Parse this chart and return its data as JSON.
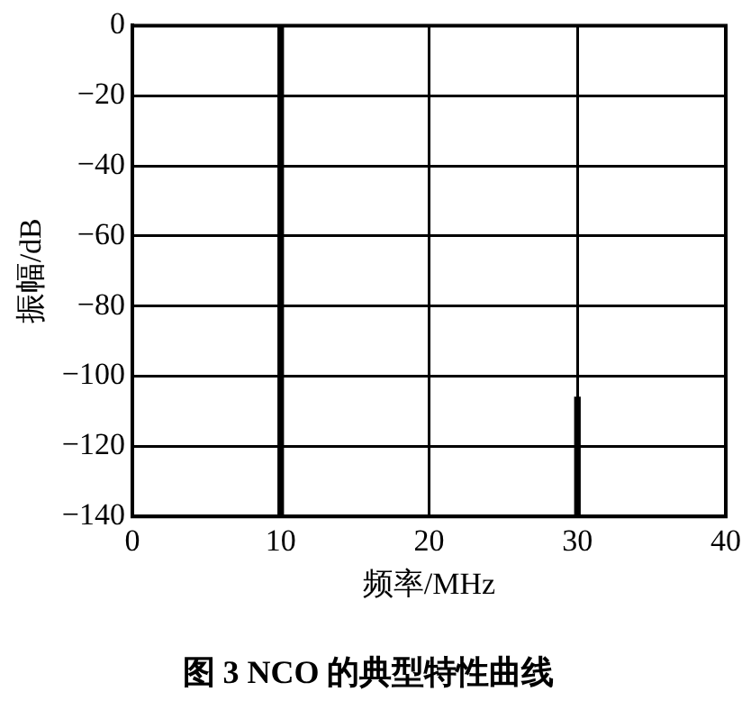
{
  "chart_data": {
    "type": "bar",
    "title": "图 3 NCO 的典型特性曲线",
    "xlabel": "频率/MHz",
    "ylabel": "振幅/dB",
    "x": [
      10,
      30
    ],
    "base": [
      -140,
      -140
    ],
    "values": [
      140,
      34
    ],
    "color": "#000000",
    "xlim": [
      0,
      40
    ],
    "xticks": [
      0,
      10,
      20,
      30,
      40
    ],
    "ylim": [
      -140,
      0
    ],
    "yticks": [
      -140,
      -120,
      -100,
      -80,
      -60,
      -40,
      -20,
      0
    ],
    "grid": true,
    "legend": false
  }
}
